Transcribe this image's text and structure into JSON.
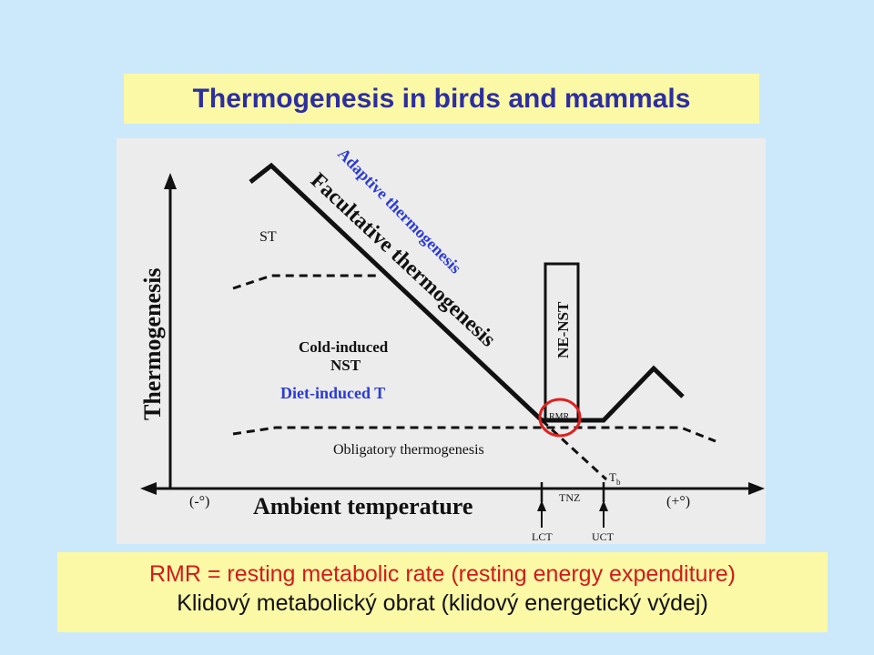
{
  "title": "Thermogenesis in birds and mammals",
  "diagram": {
    "y_axis_label": "Thermogenesis",
    "x_axis_label": "Ambient temperature",
    "x_minus": "(-°)",
    "x_plus": "(+°)",
    "label_st": "ST",
    "label_cold_induced_line1": "Cold-induced",
    "label_cold_induced_line2": "NST",
    "label_diet_induced": "Diet-induced T",
    "label_obligatory": "Obligatory thermogenesis",
    "label_facultative": "Facultative thermogenesis",
    "label_adaptive": "Adaptive thermogenesis",
    "label_ne_nst": "NE-NST",
    "label_rmr": "RMR",
    "label_tb": "T",
    "label_tb_sub": "b",
    "label_tnz": "TNZ",
    "label_lct": "LCT",
    "label_uct": "UCT"
  },
  "caption": {
    "line1": "RMR = resting metabolic rate (resting energy expenditure)",
    "line2": "Klidový metabolický obrat (klidový energetický výdej)"
  },
  "colors": {
    "background": "#cce9fc",
    "box": "#fbf8a6",
    "title_text": "#2d2ea0",
    "annotation_blue": "#2b3bd6",
    "highlight_red": "#e02020",
    "caption_red": "#d21b1b"
  }
}
